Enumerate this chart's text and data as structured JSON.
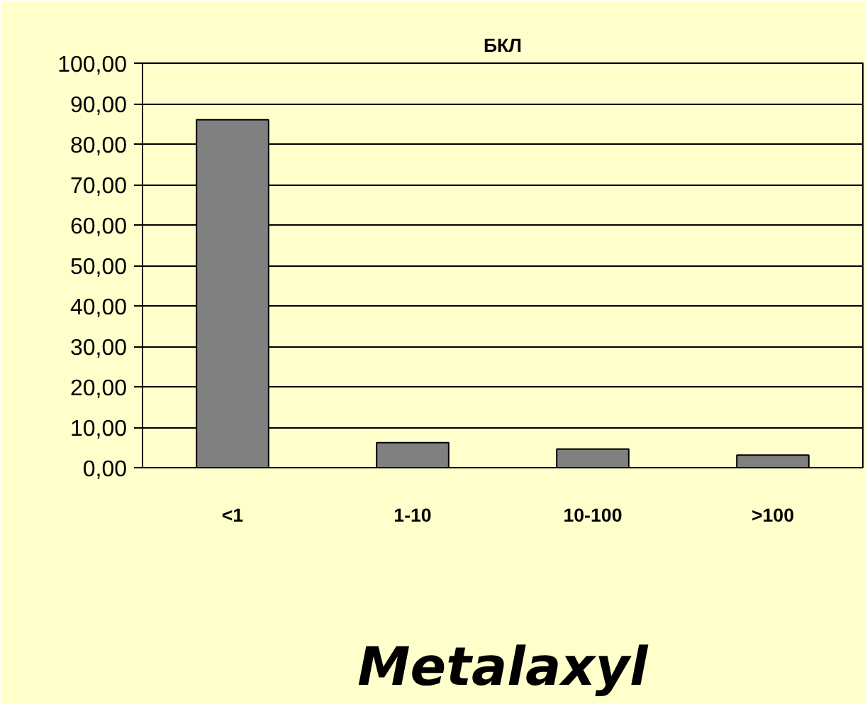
{
  "chart_data": {
    "type": "bar",
    "title": "БКЛ",
    "categories": [
      "<1",
      "1-10",
      "10-100",
      ">100"
    ],
    "values": [
      86,
      6.2,
      4.6,
      3.1
    ],
    "color": "#808080",
    "ylim": [
      0,
      100
    ],
    "yticks": [
      {
        "value": 0,
        "label": "0,00"
      },
      {
        "value": 10,
        "label": "10,00"
      },
      {
        "value": 20,
        "label": "20,00"
      },
      {
        "value": 30,
        "label": "30,00"
      },
      {
        "value": 40,
        "label": "40,00"
      },
      {
        "value": 50,
        "label": "50,00"
      },
      {
        "value": 60,
        "label": "60,00"
      },
      {
        "value": 70,
        "label": "70,00"
      },
      {
        "value": 80,
        "label": "80,00"
      },
      {
        "value": 90,
        "label": "90,00"
      },
      {
        "value": 100,
        "label": "100,00"
      }
    ],
    "grid": "y",
    "annotations": [
      "Metalaxyl"
    ]
  }
}
